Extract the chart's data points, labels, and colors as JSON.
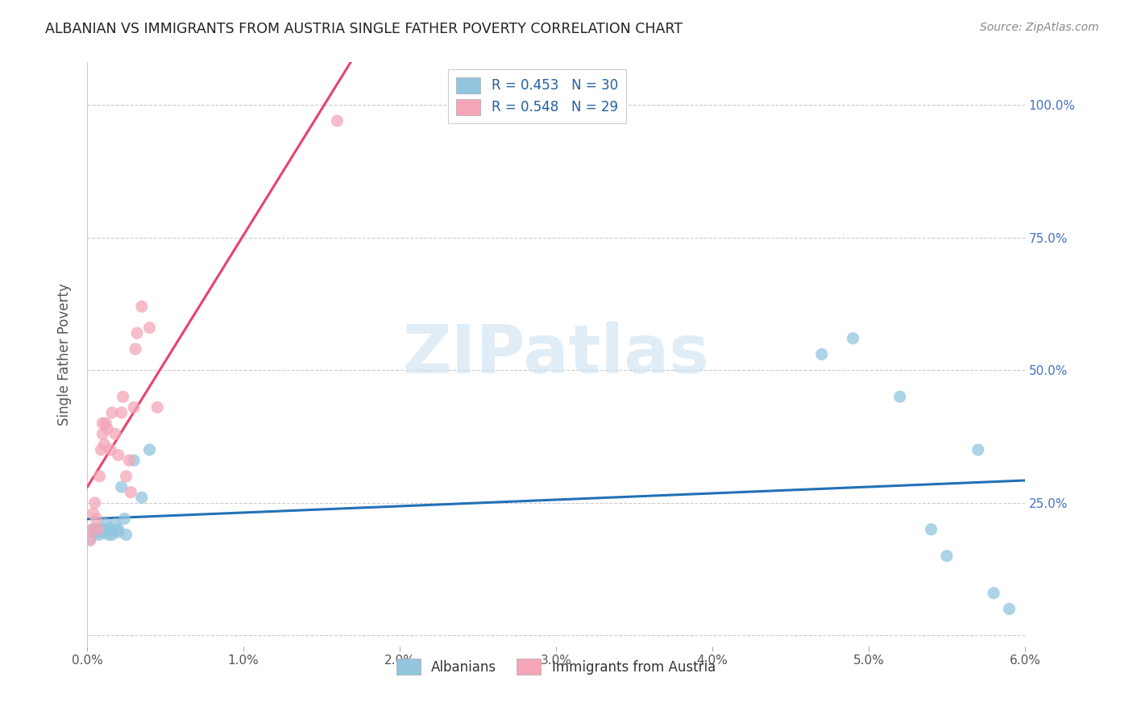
{
  "title": "ALBANIAN VS IMMIGRANTS FROM AUSTRIA SINGLE FATHER POVERTY CORRELATION CHART",
  "source": "Source: ZipAtlas.com",
  "ylabel": "Single Father Poverty",
  "y_ticks": [
    0.0,
    0.25,
    0.5,
    0.75,
    1.0
  ],
  "y_tick_labels": [
    "",
    "25.0%",
    "50.0%",
    "75.0%",
    "100.0%"
  ],
  "x_lim": [
    0.0,
    0.06
  ],
  "y_lim": [
    -0.02,
    1.08
  ],
  "legend_r1": "R = 0.453   N = 30",
  "legend_r2": "R = 0.548   N = 29",
  "legend_label1": "Albanians",
  "legend_label2": "Immigrants from Austria",
  "color_blue": "#92C5DE",
  "color_pink": "#F4A6B8",
  "line_color_blue": "#2171B5",
  "line_color_pink": "#E8436A",
  "watermark": "ZIPatlas",
  "albanian_x": [
    0.0002,
    0.0004,
    0.0005,
    0.0006,
    0.0007,
    0.0008,
    0.001,
    0.0011,
    0.0012,
    0.0013,
    0.0014,
    0.0015,
    0.0016,
    0.0018,
    0.002,
    0.002,
    0.0022,
    0.0024,
    0.0025,
    0.003,
    0.0035,
    0.004,
    0.047,
    0.049,
    0.052,
    0.054,
    0.055,
    0.057,
    0.058,
    0.059
  ],
  "albanian_y": [
    0.18,
    0.2,
    0.195,
    0.2,
    0.195,
    0.19,
    0.2,
    0.195,
    0.21,
    0.2,
    0.19,
    0.2,
    0.19,
    0.21,
    0.195,
    0.2,
    0.28,
    0.22,
    0.19,
    0.33,
    0.26,
    0.35,
    0.53,
    0.56,
    0.45,
    0.2,
    0.15,
    0.35,
    0.08,
    0.05
  ],
  "austria_x": [
    0.0002,
    0.0003,
    0.0004,
    0.0005,
    0.0006,
    0.0007,
    0.0008,
    0.0009,
    0.001,
    0.001,
    0.0011,
    0.0012,
    0.0013,
    0.0015,
    0.0016,
    0.0018,
    0.002,
    0.0022,
    0.0023,
    0.0025,
    0.0027,
    0.0028,
    0.003,
    0.0031,
    0.0032,
    0.0035,
    0.004,
    0.0045,
    0.016
  ],
  "austria_y": [
    0.18,
    0.2,
    0.23,
    0.25,
    0.22,
    0.2,
    0.3,
    0.35,
    0.38,
    0.4,
    0.36,
    0.4,
    0.39,
    0.35,
    0.42,
    0.38,
    0.34,
    0.42,
    0.45,
    0.3,
    0.33,
    0.27,
    0.43,
    0.54,
    0.57,
    0.62,
    0.58,
    0.43,
    0.97
  ]
}
